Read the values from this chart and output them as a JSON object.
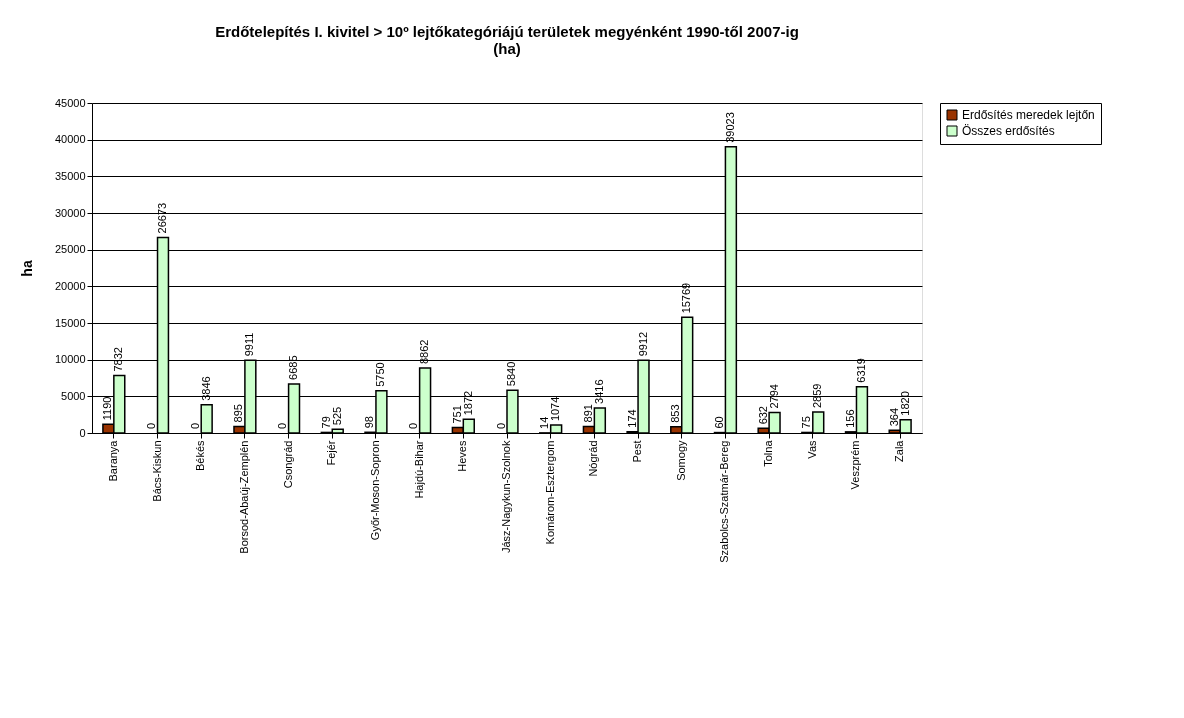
{
  "chart_data": {
    "type": "bar",
    "title": [
      "Erdőtelepítés I. kivitel > 10º lejtőkategóriájú területek megyénként 1990-től 2007-ig",
      "(ha)"
    ],
    "ylabel": "ha",
    "categories": [
      "Baranya",
      "Bács-Kiskun",
      "Békés",
      "Borsod-Abaúj-Zemplén",
      "Csongrád",
      "Fejér",
      "Győr-Moson-Sopron",
      "Hajdú-Bihar",
      "Heves",
      "Jász-Nagykun-Szolnok",
      "Komárom-Esztergom",
      "Nógrád",
      "Pest",
      "Somogy",
      "Szabolcs-Szatmár-Bereg",
      "Tolna",
      "Vas",
      "Veszprém",
      "Zala"
    ],
    "series": [
      {
        "name": "Erdősítés meredek lejtőn",
        "color": "#993300",
        "values": [
          1190,
          0,
          0,
          895,
          0,
          79,
          98,
          0,
          751,
          0,
          14,
          891,
          174,
          853,
          60,
          632,
          75,
          156,
          364
        ]
      },
      {
        "name": "Összes erdősítés",
        "color": "#ccffcc",
        "values": [
          7832,
          26673,
          3846,
          9911,
          6685,
          525,
          5750,
          8862,
          1872,
          5840,
          1074,
          3416,
          9912,
          15769,
          39023,
          2794,
          2859,
          6319,
          1820
        ]
      }
    ],
    "ylim": [
      0,
      45000
    ],
    "yticks": [
      0,
      5000,
      10000,
      15000,
      20000,
      25000,
      30000,
      35000,
      40000,
      45000
    ],
    "grid": "y",
    "legend": "right",
    "data_labels": true
  }
}
